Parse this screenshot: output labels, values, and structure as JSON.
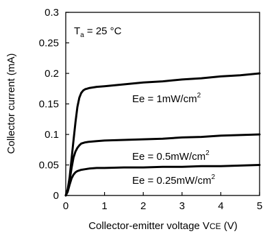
{
  "chart_data": {
    "type": "line",
    "xlabel_prefix": "Collector-emitter voltage V",
    "xlabel_sub": "CE",
    "xlabel_suffix": " (V)",
    "ylabel": "Collector current (mA)",
    "xlim": [
      0,
      5
    ],
    "ylim": [
      0,
      0.3
    ],
    "x_ticks": [
      0,
      1,
      2,
      3,
      4,
      5
    ],
    "y_ticks": [
      0,
      0.05,
      0.1,
      0.15,
      0.2,
      0.25,
      0.3
    ],
    "x_tick_labels": [
      "0",
      "1",
      "2",
      "3",
      "4",
      "5"
    ],
    "y_tick_labels": [
      "0",
      "0.05",
      "0.1",
      "0.15",
      "0.2",
      "0.25",
      "0.3"
    ],
    "grid": false,
    "temp_annotation": {
      "prefix": "T",
      "sub": "a",
      "suffix": " = 25 °C"
    },
    "series": [
      {
        "name": "Ee = 1mW/cm",
        "name_sup": "2",
        "x": [
          0,
          0.05,
          0.1,
          0.15,
          0.2,
          0.25,
          0.3,
          0.35,
          0.4,
          0.45,
          0.5,
          0.55,
          0.6,
          0.8,
          1,
          1.5,
          2,
          2.5,
          3,
          3.5,
          4,
          4.5,
          5
        ],
        "y": [
          0,
          0.01,
          0.03,
          0.06,
          0.09,
          0.12,
          0.145,
          0.16,
          0.168,
          0.172,
          0.174,
          0.175,
          0.176,
          0.178,
          0.179,
          0.182,
          0.185,
          0.187,
          0.19,
          0.192,
          0.195,
          0.197,
          0.2
        ]
      },
      {
        "name": "Ee = 0.5mW/cm",
        "name_sup": "2",
        "x": [
          0,
          0.05,
          0.1,
          0.15,
          0.2,
          0.25,
          0.3,
          0.35,
          0.4,
          0.5,
          0.6,
          0.8,
          1,
          1.5,
          2,
          2.5,
          3,
          3.5,
          4,
          4.5,
          5
        ],
        "y": [
          0,
          0.008,
          0.025,
          0.045,
          0.062,
          0.072,
          0.078,
          0.082,
          0.085,
          0.087,
          0.088,
          0.089,
          0.09,
          0.091,
          0.092,
          0.093,
          0.095,
          0.096,
          0.098,
          0.099,
          0.1
        ]
      },
      {
        "name": "Ee = 0.25mW/cm",
        "name_sup": "2",
        "x": [
          0,
          0.05,
          0.1,
          0.15,
          0.2,
          0.25,
          0.3,
          0.4,
          0.5,
          0.6,
          0.8,
          1,
          1.5,
          2,
          2.5,
          3,
          3.5,
          4,
          4.5,
          5
        ],
        "y": [
          0,
          0.006,
          0.018,
          0.028,
          0.034,
          0.038,
          0.04,
          0.042,
          0.043,
          0.044,
          0.045,
          0.045,
          0.046,
          0.046,
          0.047,
          0.047,
          0.048,
          0.048,
          0.049,
          0.05
        ]
      }
    ],
    "colors": {
      "line": "#000000",
      "frame": "#000000",
      "background": "#ffffff"
    }
  }
}
